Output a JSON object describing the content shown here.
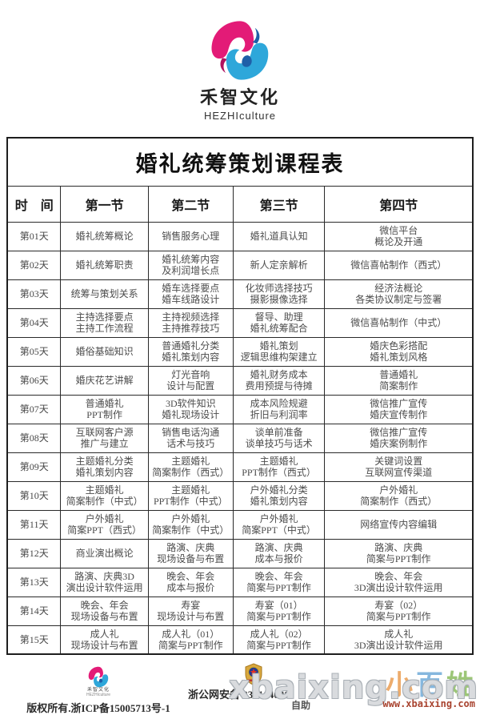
{
  "brand": {
    "name": "禾智文化",
    "subtitle": "HEZHIculture"
  },
  "colors": {
    "logo_pink": "#e31b77",
    "logo_blue": "#2ea7da",
    "logo_navy": "#1f5fa8",
    "table_border": "#1e1e1e",
    "body_text": "#4c4c4c",
    "watermark_url_red": "#a8432f"
  },
  "icons": {
    "logo_swirl": "hezhi-swirl-logo",
    "police_badge": "public-security-badge"
  },
  "table": {
    "title": "婚礼统筹策划课程表",
    "headers": [
      "时　间",
      "第一节",
      "第二节",
      "第三节",
      "第四节"
    ],
    "rows": [
      {
        "day": "第01天",
        "c1": "婚礼统筹概论",
        "c2": "销售服务心理",
        "c3": "婚礼道具认知",
        "c4": "微信平台\n概论及开通"
      },
      {
        "day": "第02天",
        "c1": "婚礼统筹职责",
        "c2": "婚礼统筹内容\n及利润增长点",
        "c3": "新人定亲解析",
        "c4": "微信喜帖制作（西式）"
      },
      {
        "day": "第03天",
        "c1": "统筹与策划关系",
        "c2": "婚车选择要点\n婚车线路设计",
        "c3": "化妆师选择技巧\n摄影摄像选择",
        "c4": "经济法概论\n各类协议制定与签署"
      },
      {
        "day": "第04天",
        "c1": "主持选择要点\n主持工作流程",
        "c2": "主持视频选择\n主持推荐技巧",
        "c3": "督导、助理\n婚礼统筹配合",
        "c4": "微信喜帖制作（中式）"
      },
      {
        "day": "第05天",
        "c1": "婚俗基础知识",
        "c2": "普通婚礼分类\n婚礼策划内容",
        "c3": "婚礼策划\n逻辑思维构架建立",
        "c4": "婚庆色彩搭配\n婚礼策划风格"
      },
      {
        "day": "第06天",
        "c1": "婚庆花艺讲解",
        "c2": "灯光音响\n设计与配置",
        "c3": "婚礼财务成本\n费用预提与待摊",
        "c4": "普通婚礼\n简案制作"
      },
      {
        "day": "第07天",
        "c1": "普通婚礼\nPPT制作",
        "c2": "3D软件知识\n婚礼现场设计",
        "c3": "成本风险规避\n折旧与利润率",
        "c4": "微信推广宣传\n婚庆宣传制作"
      },
      {
        "day": "第08天",
        "c1": "互联网客户源\n推广与建立",
        "c2": "销售电话沟通\n话术与技巧",
        "c3": "谈单前准备\n谈单技巧与话术",
        "c4": "微信推广宣传\n婚庆案例制作"
      },
      {
        "day": "第09天",
        "c1": "主题婚礼分类\n婚礼策划内容",
        "c2": "主题婚礼\n简案制作（西式）",
        "c3": "主题婚礼\nPPT制作（西式）",
        "c4": "关键词设置\n互联网宣传渠道"
      },
      {
        "day": "第10天",
        "c1": "主题婚礼\n简案制作（中式）",
        "c2": "主题婚礼\nPPT制作（中式）",
        "c3": "户外婚礼分类\n婚礼策划内容",
        "c4": "户外婚礼\n简案制作（西式）"
      },
      {
        "day": "第11天",
        "c1": "户外婚礼\n简案PPT（西式）",
        "c2": "户外婚礼\n简案制作（中式）",
        "c3": "户外婚礼\n简案PPT（中式）",
        "c4": "网络宣传内容编辑"
      },
      {
        "day": "第12天",
        "c1": "商业演出概论",
        "c2": "路演、庆典\n现场设备与布置",
        "c3": "路演、庆典\n成本与报价",
        "c4": "路演、庆典\n简案与PPT制作"
      },
      {
        "day": "第13天",
        "c1": "路演、庆典3D\n演出设计软件运用",
        "c2": "晚会、年会\n成本与报价",
        "c3": "晚会、年会\n简案与PPT制作",
        "c4": "晚会、年会\n3D演出设计软件运用"
      },
      {
        "day": "第14天",
        "c1": "晚会、年会\n现场设备与布置",
        "c2": "寿宴\n现场设计与布置",
        "c3": "寿宴（01）\n简案与PPT制作",
        "c4": "寿宴（02）\n简案与PPT制作"
      },
      {
        "day": "第15天",
        "c1": "成人礼\n现场设计与布置",
        "c2": "成人礼（01）\n简案与PPT制作",
        "c3": "成人礼（02）\n简案与PPT制作",
        "c4": "成人礼\n3D演出设计软件运用"
      }
    ]
  },
  "footer": {
    "copyright": "版权所有.浙ICP备15005713号-1",
    "police_record": "浙公网安备 330104020",
    "mini_logo_name": "禾智文化",
    "mini_logo_subtitle": "HEZHIculture"
  },
  "watermark": {
    "big_text": "xbaixing.com",
    "chars": {
      "c1": "小",
      "c2": "百",
      "c3": "姓"
    },
    "prefix": "自助",
    "url": "www.xbaixing.com"
  }
}
